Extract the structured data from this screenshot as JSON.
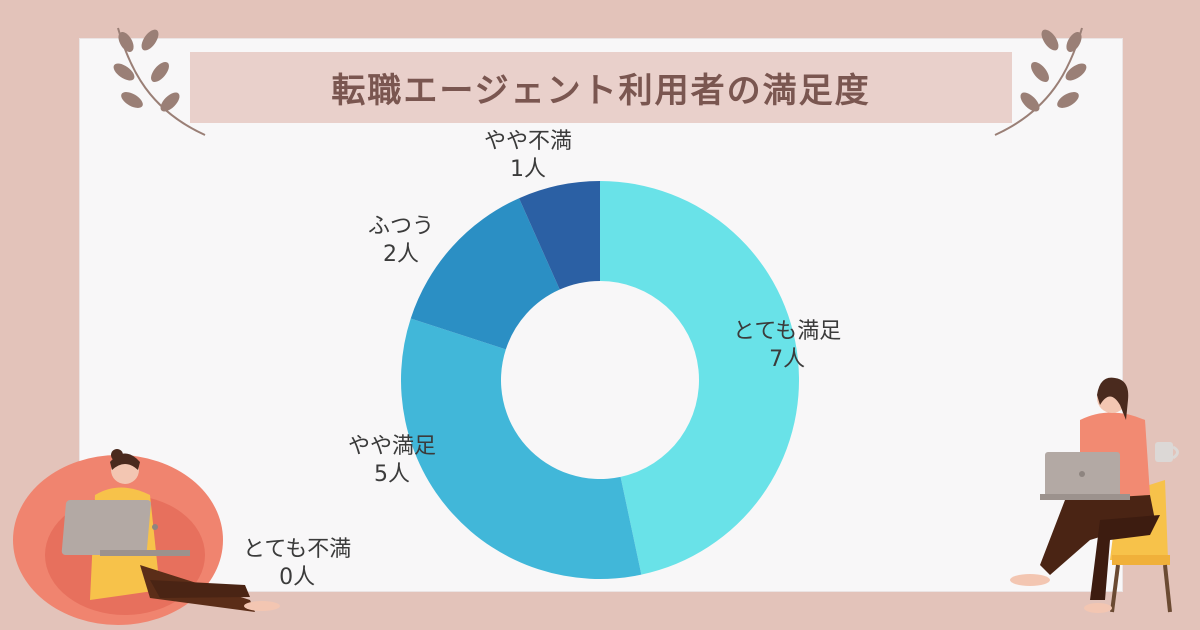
{
  "title": "転職エージェント利用者の満足度",
  "colors": {
    "background": "#e3c3ba",
    "banner": "#e9d0cb",
    "title_text": "#7a5650"
  },
  "chart_data": {
    "type": "donut",
    "title": "転職エージェント利用者の満足度",
    "unit": "人",
    "slices": [
      {
        "label": "とても満足",
        "value": 7,
        "value_text": "7人",
        "color": "#69e2e8"
      },
      {
        "label": "やや満足",
        "value": 5,
        "value_text": "5人",
        "color": "#41b7d9"
      },
      {
        "label": "ふつう",
        "value": 2,
        "value_text": "2人",
        "color": "#2b8fc4"
      },
      {
        "label": "やや不満",
        "value": 1,
        "value_text": "1人",
        "color": "#2b60a4"
      },
      {
        "label": "とても不満",
        "value": 0,
        "value_text": "0人",
        "color": "#1f3f7a"
      }
    ]
  },
  "decorations": {
    "left_branch_icon": "leaf-branch-icon",
    "right_branch_icon": "leaf-branch-icon",
    "left_person_icon": "person-with-laptop-on-beanbag",
    "right_person_icon": "person-with-laptop-and-mug"
  }
}
